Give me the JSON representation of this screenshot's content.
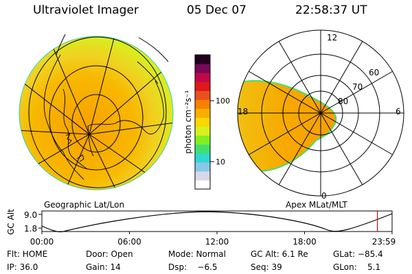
{
  "header": {
    "title": "Ultraviolet Imager",
    "date": "05 Dec 07",
    "time": "22:58:37 UT"
  },
  "left_panel": {
    "caption": "Geographic Lat/Lon"
  },
  "right_panel": {
    "caption": "Apex MLat/MLT",
    "mlt_labels": [
      "12",
      "18",
      "6",
      "0"
    ],
    "lat_labels": [
      "60",
      "70",
      "80"
    ]
  },
  "colorbar": {
    "unit": "photon cm⁻²s⁻¹",
    "ticks": [
      "100",
      "10"
    ],
    "colors": [
      "#ffffff",
      "#d8d8e8",
      "#88c8e8",
      "#30d8d0",
      "#40e070",
      "#80f020",
      "#d8f020",
      "#f8d800",
      "#f8b000",
      "#f88000",
      "#e85020",
      "#e01818",
      "#c00848",
      "#780858",
      "#200020"
    ]
  },
  "altitude_plot": {
    "ylabel": "GC Alt",
    "yticks": [
      "9.0",
      "1.8"
    ],
    "xticks": [
      "00:00",
      "06:00",
      "12:00",
      "18:00",
      "23:59"
    ],
    "current_time_fraction": 0.958,
    "curve_color": "#000000",
    "marker_color": "#dd0000"
  },
  "info": {
    "flt": "Flt: HOME",
    "door": "Door: Open",
    "mode": "Mode: Normal",
    "gc_alt": "GC Alt: 6.1 Re",
    "glat": "GLat: −85.4",
    "ip": "IP: 36.0",
    "gain": "Gain: 14",
    "dsp": "Dsp:    −6.5",
    "seq": "Seq: 39",
    "glon": "GLon:    5.1"
  }
}
